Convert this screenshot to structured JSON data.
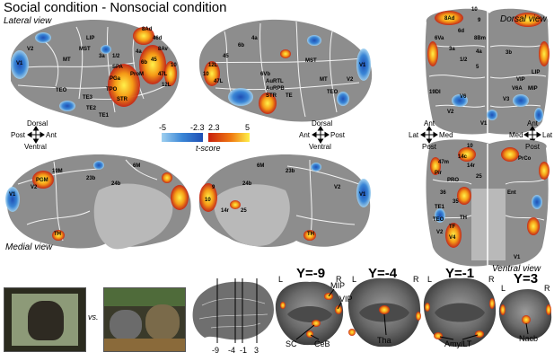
{
  "title": "Social condition - Nonsocial condition",
  "views": {
    "lateral": "Lateral view",
    "dorsal": "Dorsal view",
    "medial": "Medial view",
    "ventral": "Ventral view"
  },
  "orientation": {
    "lateral_left": {
      "up": "Dorsal",
      "down": "Ventral",
      "left": "Post",
      "right": "Ant"
    },
    "lateral_right": {
      "up": "Dorsal",
      "down": "Ventral",
      "left": "Ant",
      "right": "Post"
    },
    "dorsal_left": {
      "up": "Ant",
      "down": "Post",
      "left": "Lat",
      "right": "Med"
    },
    "dorsal_right": {
      "up": "Ant",
      "down": "Post",
      "left": "Med",
      "right": "Lat"
    }
  },
  "colorbar": {
    "ticks": [
      "-5",
      "-2.3",
      "2.3",
      "5"
    ],
    "label": "t-score",
    "colors": {
      "neg_dark": "#1f4fb4",
      "neg_light": "#9fd0f0",
      "pos_dark": "#c8200e",
      "pos_mid": "#f07a12",
      "pos_light": "#fff14a"
    }
  },
  "regions": {
    "lateral_left": [
      "V1",
      "V2",
      "MT",
      "TEO",
      "TE3",
      "TE2",
      "TE1",
      "TPO",
      "STR",
      "PGa",
      "ProM",
      "6b",
      "4a",
      "3a",
      "1/2",
      "SPA",
      "8Ad",
      "46d",
      "8Av",
      "47L",
      "12L",
      "10",
      "45",
      "MST",
      "LIP"
    ],
    "lateral_right": [
      "47L",
      "12L",
      "10",
      "45",
      "6b",
      "4a",
      "MST",
      "MT",
      "TE",
      "TEO",
      "V2",
      "V1",
      "6Vb",
      "STR",
      "AuRPB",
      "AuRTL"
    ],
    "dorsal": [
      "10",
      "8Ad",
      "9",
      "6d",
      "8Bm",
      "6Va",
      "3a",
      "1/2",
      "4a",
      "5",
      "V6",
      "V6A",
      "VIP",
      "MIP",
      "LIP",
      "V3",
      "V1",
      "3b",
      "19DI",
      "V2"
    ],
    "medial_left": [
      "V2",
      "V1",
      "19M",
      "PGM",
      "6M",
      "24b",
      "TH",
      "23b"
    ],
    "medial_right": [
      "6M",
      "24b",
      "23b",
      "9",
      "14r",
      "25",
      "10",
      "TH",
      "V2",
      "V1"
    ],
    "ventral": [
      "10",
      "14c",
      "14r",
      "47m",
      "Pir",
      "25",
      "PRO",
      "Ent",
      "35",
      "36",
      "TE1",
      "TH",
      "TF",
      "TEO",
      "V4",
      "V2",
      "V1",
      "PrCo"
    ]
  },
  "conditions": {
    "vs": "vs."
  },
  "sagittal_ticks": [
    "-9",
    "-4",
    "-1",
    "3"
  ],
  "slices": [
    {
      "label": "Y=-9",
      "L": "L",
      "R": "R",
      "annotations": [
        "MIP",
        "VIP",
        "SC",
        "CeB"
      ]
    },
    {
      "label": "Y=-4",
      "L": "L",
      "R": "R",
      "annotations": [
        "Tha"
      ]
    },
    {
      "label": "Y=-1",
      "L": "L",
      "R": "R",
      "annotations": [
        "Amy/LT"
      ]
    },
    {
      "label": "Y=3",
      "L": "L",
      "R": "R",
      "annotations": [
        "Nacb"
      ]
    }
  ]
}
